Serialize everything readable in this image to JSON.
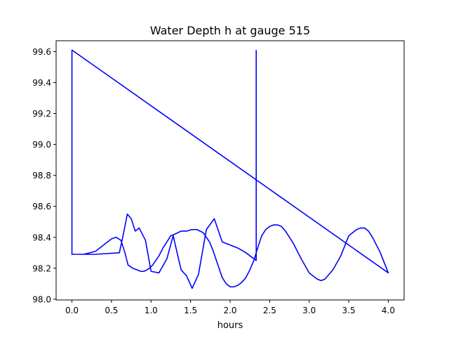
{
  "chart_data": {
    "type": "line",
    "title": "Water Depth h at gauge 515",
    "xlabel": "hours",
    "ylabel": "",
    "xlim": [
      -0.2,
      4.2
    ],
    "ylim": [
      97.995,
      99.67
    ],
    "x_ticks": [
      0.0,
      0.5,
      1.0,
      1.5,
      2.0,
      2.5,
      3.0,
      3.5,
      4.0
    ],
    "x_tick_labels": [
      "0.0",
      "0.5",
      "1.0",
      "1.5",
      "2.0",
      "2.5",
      "3.0",
      "3.5",
      "4.0"
    ],
    "y_ticks": [
      98.0,
      98.2,
      98.4,
      98.6,
      98.8,
      99.0,
      99.2,
      99.4,
      99.6
    ],
    "y_tick_labels": [
      "98.0",
      "98.2",
      "98.4",
      "98.6",
      "98.8",
      "99.0",
      "99.2",
      "99.4",
      "99.6"
    ],
    "grid": false,
    "legend": "none",
    "line_color": "#0000ff",
    "series": [
      {
        "x": [
          0.0,
          0.0,
          0.15,
          0.3,
          0.4,
          0.5,
          0.56,
          0.62,
          0.67,
          0.71,
          0.77,
          0.82,
          0.87,
          0.91,
          0.95,
          0.98,
          1.02,
          1.06,
          1.1,
          1.15,
          1.2,
          1.25,
          1.3,
          1.38,
          1.45,
          1.52,
          1.58,
          1.62,
          1.66,
          1.7,
          1.74,
          1.78,
          1.82,
          1.86,
          1.9,
          1.95,
          2.0,
          2.05,
          2.1,
          2.15,
          2.2,
          2.25,
          2.3,
          2.33,
          2.36,
          2.4,
          2.45,
          2.5,
          2.55,
          2.6,
          2.65,
          2.7,
          2.8,
          2.9,
          3.0,
          3.1,
          3.15,
          3.2,
          3.3,
          3.4,
          3.5,
          3.6,
          3.65,
          3.7,
          3.75,
          3.8,
          3.9,
          4.0,
          0.0,
          0.0,
          0.3,
          0.6,
          0.65,
          0.7,
          0.75,
          0.8,
          0.85,
          0.93,
          1.0,
          1.1,
          1.2,
          1.28,
          1.38,
          1.45,
          1.52,
          1.6,
          1.7,
          1.8,
          1.9,
          2.0,
          2.1,
          2.2,
          2.33,
          2.33
        ],
        "y": [
          99.61,
          98.29,
          98.29,
          98.31,
          98.35,
          98.39,
          98.4,
          98.38,
          98.3,
          98.22,
          98.2,
          98.19,
          98.18,
          98.18,
          98.19,
          98.2,
          98.22,
          98.25,
          98.28,
          98.33,
          98.37,
          98.41,
          98.42,
          98.44,
          98.44,
          98.45,
          98.45,
          98.44,
          98.43,
          98.4,
          98.37,
          98.32,
          98.26,
          98.2,
          98.14,
          98.1,
          98.08,
          98.08,
          98.09,
          98.11,
          98.14,
          98.19,
          98.25,
          98.3,
          98.35,
          98.41,
          98.45,
          98.47,
          98.48,
          98.48,
          98.47,
          98.44,
          98.36,
          98.26,
          98.17,
          98.13,
          98.12,
          98.13,
          98.19,
          98.28,
          98.41,
          98.45,
          98.46,
          98.46,
          98.44,
          98.4,
          98.3,
          98.17,
          99.61,
          98.29,
          98.29,
          98.3,
          98.42,
          98.55,
          98.52,
          98.44,
          98.46,
          98.38,
          98.18,
          98.17,
          98.26,
          98.41,
          98.19,
          98.15,
          98.07,
          98.16,
          98.45,
          98.52,
          98.37,
          98.35,
          98.33,
          98.3,
          98.25,
          99.61
        ]
      }
    ]
  }
}
